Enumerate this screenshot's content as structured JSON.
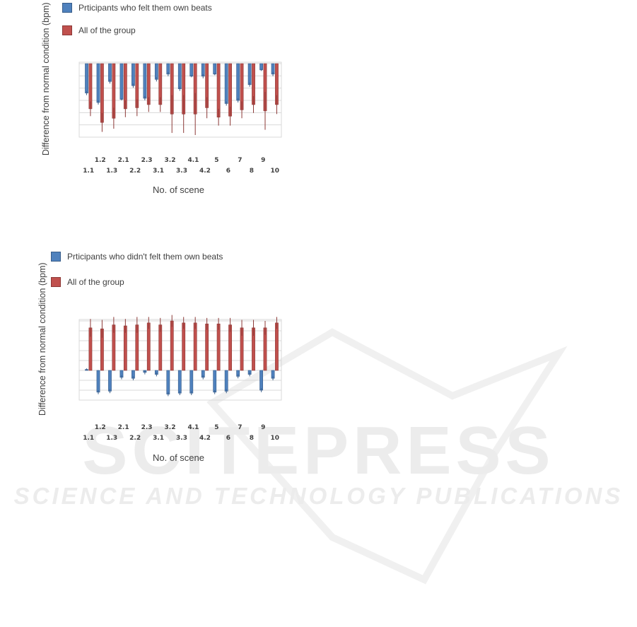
{
  "chart_data": [
    {
      "type": "bar",
      "legend": [
        "Prticipants who felt them own beats",
        "All of the group"
      ],
      "ylabel": "Difference from normal condition (bpm)",
      "xlabel": "No. of scene",
      "categories": [
        "1.1",
        "1.2",
        "1.3",
        "2.1",
        "2.2",
        "2.3",
        "3.1",
        "3.2",
        "3.3",
        "4.1",
        "4.2",
        "5",
        "6",
        "7",
        "8",
        "9",
        "10"
      ],
      "tick_row_upper": [
        "1.2",
        "2.1",
        "2.3",
        "3.2",
        "4.1",
        "5",
        "7",
        "9"
      ],
      "tick_row_lower": [
        "1.1",
        "1.3",
        "2.2",
        "3.1",
        "3.3",
        "4.2",
        "6",
        "8",
        "10"
      ],
      "ylim": [
        -7,
        0
      ],
      "grid": true,
      "legend_position": "top-left",
      "series": [
        {
          "name": "Prticipants who felt them own beats",
          "color": "#4f81bd",
          "values": [
            -2.8,
            -3.7,
            -1.7,
            -3.4,
            -2.1,
            -3.3,
            -1.5,
            -1.0,
            -2.4,
            -1.2,
            -1.2,
            -1.0,
            -3.8,
            -3.5,
            -2.0,
            -0.6,
            -1.0
          ],
          "errors": [
            0.2,
            0.2,
            0.2,
            0.1,
            0.2,
            0.2,
            0.2,
            0.2,
            0.2,
            0.1,
            0.2,
            0.1,
            0.2,
            0.2,
            0.2,
            0.1,
            0.2
          ]
        },
        {
          "name": "All of the group",
          "color": "#c0504d",
          "values": [
            -4.3,
            -5.6,
            -5.2,
            -4.3,
            -4.2,
            -3.9,
            -3.9,
            -4.8,
            -4.8,
            -4.8,
            -4.2,
            -5.1,
            -5.0,
            -4.4,
            -3.9,
            -4.5,
            -3.9
          ],
          "errors": [
            0.7,
            0.9,
            1.0,
            0.8,
            0.8,
            0.7,
            0.7,
            1.8,
            1.8,
            2.0,
            1.0,
            0.8,
            0.9,
            0.8,
            0.8,
            1.8,
            0.9
          ]
        }
      ]
    },
    {
      "type": "bar",
      "legend": [
        "Prticipants who didn't felt them own beats",
        "All of the group"
      ],
      "ylabel": "Difference from normal condition (bpm)",
      "xlabel": "No. of scene",
      "categories": [
        "1.1",
        "1.2",
        "1.3",
        "2.1",
        "2.2",
        "2.3",
        "3.1",
        "3.2",
        "3.3",
        "4.1",
        "4.2",
        "5",
        "6",
        "7",
        "8",
        "9",
        "10"
      ],
      "tick_row_upper": [
        "1.2",
        "2.1",
        "2.3",
        "3.2",
        "4.1",
        "5",
        "7",
        "9"
      ],
      "tick_row_lower": [
        "1.1",
        "1.3",
        "2.2",
        "3.1",
        "3.3",
        "4.2",
        "6",
        "8",
        "10"
      ],
      "ylim": [
        -3,
        5
      ],
      "grid": true,
      "legend_position": "top-left",
      "series": [
        {
          "name": "Prticipants who didn't felt them own beats",
          "color": "#4f81bd",
          "values": [
            0.1,
            -2.2,
            -2.1,
            -0.7,
            -0.8,
            -0.2,
            -0.4,
            -2.4,
            -2.3,
            -2.3,
            -0.7,
            -2.2,
            -2.1,
            -0.6,
            -0.4,
            -2.0,
            -0.8
          ],
          "errors": [
            0.1,
            0.2,
            0.2,
            0.2,
            0.2,
            0.2,
            0.2,
            0.2,
            0.2,
            0.2,
            0.2,
            0.2,
            0.2,
            0.2,
            0.2,
            0.2,
            0.2
          ]
        },
        {
          "name": "All of the group",
          "color": "#c0504d",
          "values": [
            4.3,
            4.2,
            4.6,
            4.5,
            4.6,
            4.8,
            4.6,
            5.0,
            4.8,
            4.8,
            4.7,
            4.7,
            4.6,
            4.3,
            4.3,
            4.3,
            4.8
          ],
          "errors": [
            0.9,
            0.9,
            0.8,
            0.7,
            0.8,
            0.6,
            0.7,
            0.6,
            0.6,
            0.6,
            0.6,
            0.6,
            0.7,
            0.8,
            0.8,
            0.7,
            0.6
          ]
        }
      ]
    }
  ]
}
